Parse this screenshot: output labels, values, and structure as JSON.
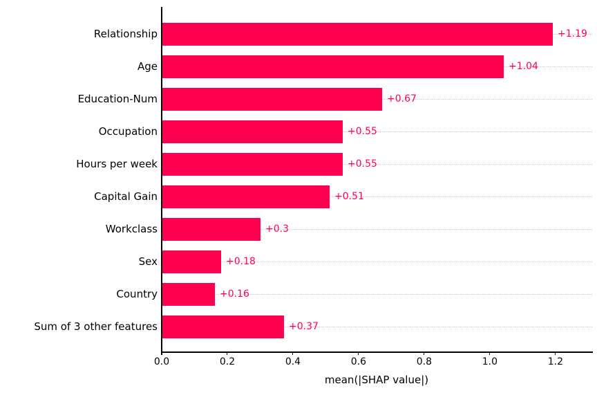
{
  "figure": {
    "background_color": "#ffffff",
    "axis_color": "#000000",
    "gridline_color": "#c9c9c9",
    "gridline_style": "dotted"
  },
  "chart_data": {
    "type": "bar",
    "orientation": "horizontal",
    "title": "",
    "xlabel": "mean(|SHAP value|)",
    "ylabel": "",
    "categories": [
      "Relationship",
      "Age",
      "Education-Num",
      "Occupation",
      "Hours per week",
      "Capital Gain",
      "Workclass",
      "Sex",
      "Country",
      "Sum of 3 other features"
    ],
    "values": [
      1.19,
      1.04,
      0.67,
      0.55,
      0.55,
      0.51,
      0.3,
      0.18,
      0.16,
      0.37
    ],
    "value_labels": [
      "+1.19",
      "+1.04",
      "+0.67",
      "+0.55",
      "+0.55",
      "+0.51",
      "+0.3",
      "+0.18",
      "+0.16",
      "+0.37"
    ],
    "bar_color": "#ff0051",
    "value_label_color": "#ff0051",
    "xlim": [
      0,
      1.314
    ],
    "x_ticks": [
      0.0,
      0.2,
      0.4,
      0.6,
      0.8,
      1.0,
      1.2
    ],
    "x_tick_labels": [
      "0.0",
      "0.2",
      "0.4",
      "0.6",
      "0.8",
      "1.0",
      "1.2"
    ],
    "grid": "horizontal dotted line per category row",
    "legend": "none"
  }
}
